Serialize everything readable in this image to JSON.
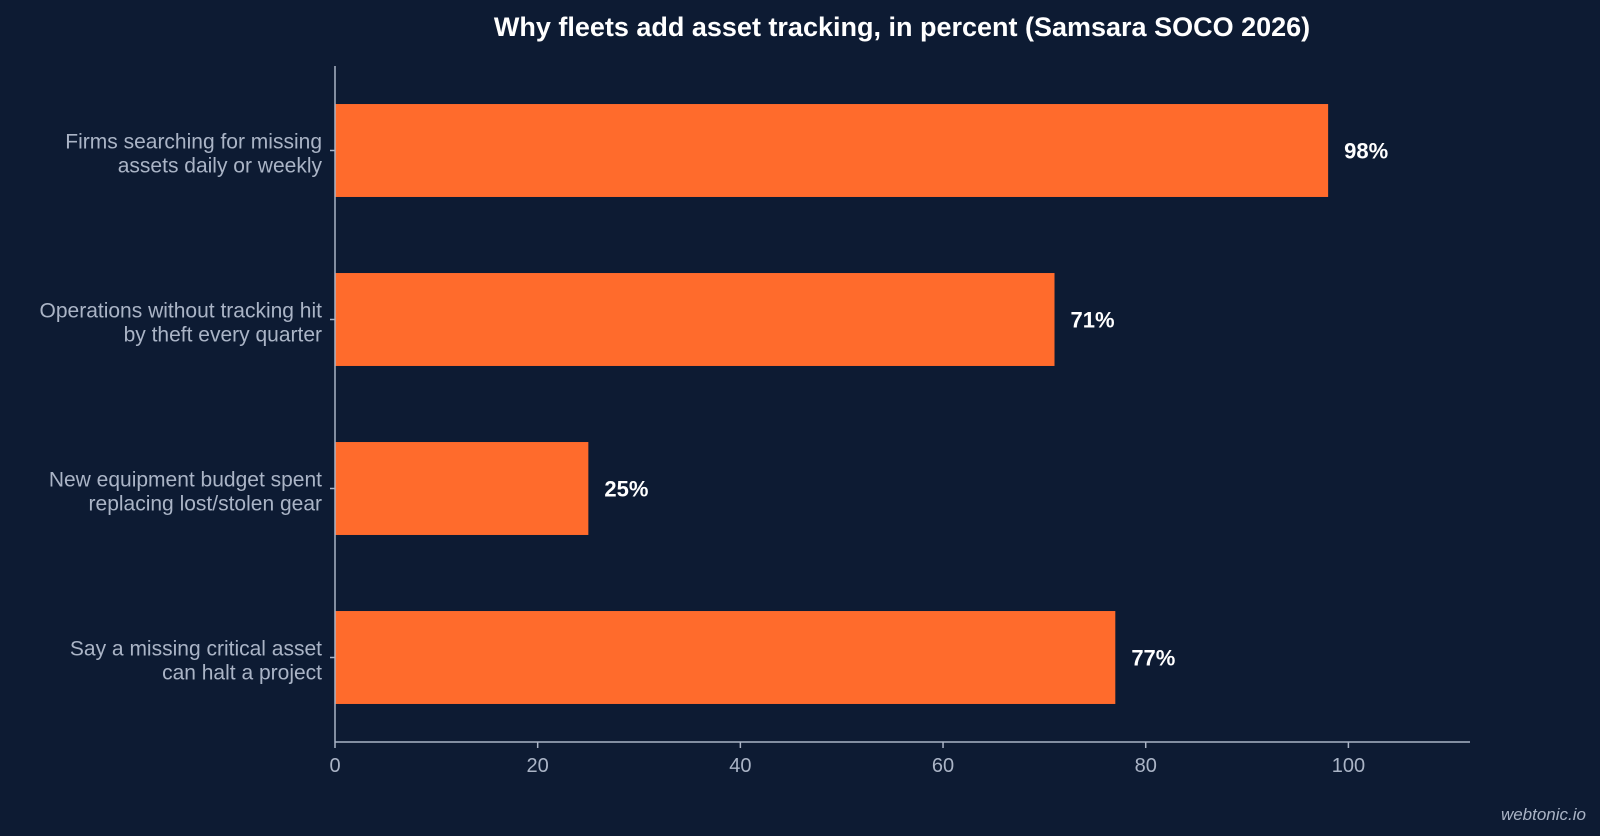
{
  "chart_data": {
    "type": "bar",
    "orientation": "horizontal",
    "title": "Why fleets add asset tracking, in percent (Samsara SOCO 2026)",
    "categories": [
      [
        "Firms searching for missing",
        "assets daily or weekly"
      ],
      [
        "Operations without tracking hit",
        "by theft every quarter"
      ],
      [
        "New equipment budget spent",
        "replacing lost/stolen gear"
      ],
      [
        "Say a missing critical asset",
        "can halt a project"
      ]
    ],
    "values": [
      98,
      71,
      25,
      77
    ],
    "value_labels": [
      "98%",
      "71%",
      "25%",
      "77%"
    ],
    "xlim": [
      0,
      112
    ],
    "x_ticks": [
      0,
      20,
      40,
      60,
      80,
      100
    ],
    "grid": false,
    "legend": "none",
    "colors": {
      "bar": "#ff6b2c",
      "background": "#0d1b33",
      "axis": "#aab4c6",
      "text": "#ffffff"
    }
  },
  "watermark": "webtonic.io"
}
